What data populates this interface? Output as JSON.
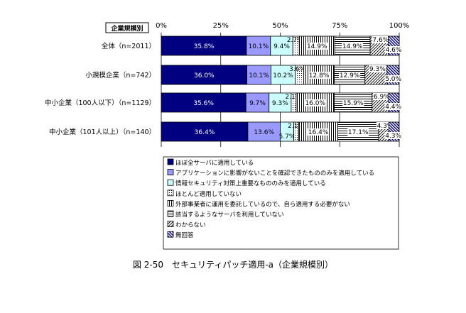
{
  "chart_data": {
    "type": "bar",
    "orientation": "horizontal",
    "stacked": true,
    "percent": true,
    "category_header": "企業規模別",
    "categories": [
      "全体（n=2011）",
      "小規模企業（n=742）",
      "中小企業（100人以下）（n=1129）",
      "中小企業（101人以上）（n=140）"
    ],
    "x_ticks": [
      "0%",
      "25%",
      "50%",
      "75%",
      "100%"
    ],
    "xlim": [
      0,
      100
    ],
    "grid": true,
    "legend_position": "bottom",
    "series": [
      {
        "name": "ほぼ全サーバに適用している",
        "values": [
          35.8,
          36.0,
          35.6,
          36.4
        ],
        "labels": [
          "35.8%",
          "36.0%",
          "35.6%",
          "36.4%"
        ],
        "color": "#000080",
        "pattern": "solid",
        "label_color": "#ffffff"
      },
      {
        "name": "アプリケーションに影響がないことを確認できたもののみを適用している",
        "values": [
          10.1,
          10.1,
          9.7,
          13.6
        ],
        "labels": [
          "10.1%",
          "10.1%",
          "9.7%",
          "13.6%"
        ],
        "color": "#9999ff",
        "pattern": "solid",
        "label_color": "#000000"
      },
      {
        "name": "情報セキュリティ対策上重要なもののみを適用している",
        "values": [
          9.4,
          10.2,
          9.3,
          5.7
        ],
        "labels": [
          "9.4%",
          "10.2%",
          "9.3%",
          "5.7%"
        ],
        "color": "#ccffff",
        "pattern": "solid",
        "label_color": "#000000"
      },
      {
        "name": "ほとんど適用していない",
        "values": [
          2.7,
          3.6,
          2.1,
          2.1
        ],
        "labels": [
          "2.7%",
          "3.6%",
          "2.1%",
          "2.1%"
        ],
        "color": "#ffffff",
        "pattern": "dots",
        "label_color": "#000000"
      },
      {
        "name": "外部事業者に運用を委託しているので、自ら適用する必要がない",
        "values": [
          14.9,
          12.8,
          16.0,
          16.4
        ],
        "labels": [
          "14.9%",
          "12.8%",
          "16.0%",
          "16.4%"
        ],
        "color": "#ffffff",
        "pattern": "vlines",
        "label_color": "#000000"
      },
      {
        "name": "該当するようなサーバを利用していない",
        "values": [
          14.9,
          12.9,
          15.9,
          17.1
        ],
        "labels": [
          "14.9%",
          "12.9%",
          "15.9%",
          "17.1%"
        ],
        "color": "#ffffff",
        "pattern": "hlines",
        "label_color": "#000000"
      },
      {
        "name": "わからない",
        "values": [
          7.6,
          9.3,
          6.9,
          4.3
        ],
        "labels": [
          "7.6%",
          "9.3%",
          "6.9%",
          "4.3%"
        ],
        "color": "#ffffff",
        "pattern": "diag",
        "label_color": "#000000"
      },
      {
        "name": "無回答",
        "values": [
          4.6,
          5.0,
          4.4,
          4.3
        ],
        "labels": [
          "4.6%",
          "5.0%",
          "4.4%",
          "4.3%"
        ],
        "color": "#000080",
        "pattern": "rdiag",
        "label_color": "#000000"
      }
    ]
  },
  "caption": "図 2-50　セキュリティパッチ適用-a（企業規模別）"
}
